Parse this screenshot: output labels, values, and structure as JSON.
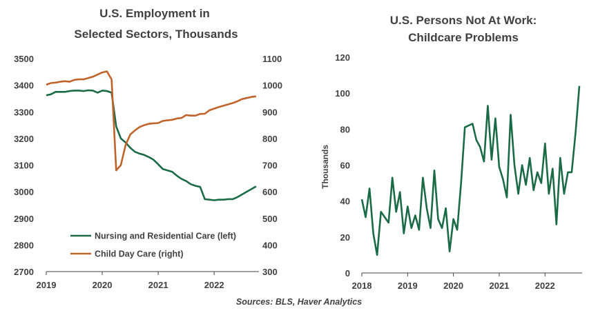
{
  "source": "Sources: BLS, Haver Analytics",
  "colors": {
    "nursing": "#1a6b45",
    "childcare": "#c0632b",
    "persons": "#1a6b45",
    "axis": "#404040"
  },
  "chart_data": [
    {
      "type": "line",
      "title_lines": [
        "U.S. Employment in",
        "Selected Sectors, Thousands"
      ],
      "xlabel": "",
      "x_ticks": [
        "2019",
        "2020",
        "2021",
        "2022"
      ],
      "y_left_ticks": [
        "3500",
        "3400",
        "3300",
        "3200",
        "3100",
        "3000",
        "2900",
        "2800",
        "2700"
      ],
      "y_right_ticks": [
        "1100",
        "1000",
        "900",
        "800",
        "700",
        "600",
        "500",
        "400",
        "300"
      ],
      "ylim_left": [
        2700,
        3500
      ],
      "ylim_right": [
        300,
        1100
      ],
      "xlim": [
        2019.0,
        2022.8
      ],
      "grid": false,
      "legend": "bottom-left",
      "series": [
        {
          "name": "Nursing and Residential Care (left)",
          "axis": "left",
          "x": [
            2019.0,
            2019.083,
            2019.167,
            2019.25,
            2019.333,
            2019.417,
            2019.5,
            2019.583,
            2019.667,
            2019.75,
            2019.833,
            2019.917,
            2020.0,
            2020.083,
            2020.167,
            2020.25,
            2020.333,
            2020.417,
            2020.5,
            2020.583,
            2020.667,
            2020.75,
            2020.833,
            2020.917,
            2021.0,
            2021.083,
            2021.167,
            2021.25,
            2021.333,
            2021.417,
            2021.5,
            2021.583,
            2021.667,
            2021.75,
            2021.833,
            2021.917,
            2022.0,
            2022.083,
            2022.167,
            2022.25,
            2022.333,
            2022.417,
            2022.5,
            2022.583,
            2022.667,
            2022.75
          ],
          "values": [
            3362,
            3366,
            3375,
            3375,
            3375,
            3378,
            3380,
            3380,
            3378,
            3381,
            3380,
            3372,
            3380,
            3378,
            3372,
            3245,
            3200,
            3185,
            3165,
            3150,
            3143,
            3138,
            3130,
            3120,
            3103,
            3085,
            3080,
            3075,
            3060,
            3048,
            3040,
            3028,
            3022,
            3018,
            2972,
            2970,
            2968,
            2970,
            2970,
            2972,
            2972,
            2980,
            2990,
            3000,
            3010,
            3020
          ]
        },
        {
          "name": "Child Day Care (right)",
          "axis": "right",
          "x": [
            2019.0,
            2019.083,
            2019.167,
            2019.25,
            2019.333,
            2019.417,
            2019.5,
            2019.583,
            2019.667,
            2019.75,
            2019.833,
            2019.917,
            2020.0,
            2020.083,
            2020.167,
            2020.25,
            2020.333,
            2020.417,
            2020.5,
            2020.583,
            2020.667,
            2020.75,
            2020.833,
            2020.917,
            2021.0,
            2021.083,
            2021.167,
            2021.25,
            2021.333,
            2021.417,
            2021.5,
            2021.583,
            2021.667,
            2021.75,
            2021.833,
            2021.917,
            2022.0,
            2022.083,
            2022.167,
            2022.25,
            2022.333,
            2022.417,
            2022.5,
            2022.583,
            2022.667,
            2022.75
          ],
          "values": [
            1002,
            1008,
            1010,
            1013,
            1015,
            1013,
            1020,
            1022,
            1022,
            1027,
            1032,
            1040,
            1048,
            1052,
            1022,
            680,
            700,
            775,
            815,
            830,
            843,
            850,
            855,
            857,
            858,
            866,
            868,
            870,
            875,
            877,
            888,
            886,
            886,
            892,
            893,
            906,
            912,
            918,
            923,
            928,
            933,
            940,
            948,
            952,
            956,
            958
          ]
        }
      ]
    },
    {
      "type": "line",
      "title_lines": [
        "U.S. Persons Not At Work:",
        "Childcare Problems"
      ],
      "xlabel": "",
      "ylabel": "Thousands",
      "x_ticks": [
        "2018",
        "2019",
        "2020",
        "2021",
        "2022"
      ],
      "y_ticks": [
        "120",
        "100",
        "80",
        "60",
        "40",
        "20",
        "0"
      ],
      "ylim": [
        0,
        120
      ],
      "xlim": [
        2018.0,
        2022.75
      ],
      "grid": false,
      "series": [
        {
          "name": "",
          "x": [
            2018.0,
            2018.083,
            2018.167,
            2018.25,
            2018.333,
            2018.417,
            2018.5,
            2018.583,
            2018.667,
            2018.75,
            2018.833,
            2018.917,
            2019.0,
            2019.083,
            2019.167,
            2019.25,
            2019.333,
            2019.417,
            2019.5,
            2019.583,
            2019.667,
            2019.75,
            2019.833,
            2019.917,
            2020.0,
            2020.083,
            2020.167,
            2020.25,
            2020.333,
            2020.417,
            2020.5,
            2020.583,
            2020.667,
            2020.75,
            2020.833,
            2020.917,
            2021.0,
            2021.083,
            2021.167,
            2021.25,
            2021.333,
            2021.417,
            2021.5,
            2021.583,
            2021.667,
            2021.75,
            2021.833,
            2021.917,
            2022.0,
            2022.083,
            2022.167,
            2022.25,
            2022.333,
            2022.417,
            2022.5,
            2022.583,
            2022.667,
            2022.75
          ],
          "values": [
            41,
            31,
            47,
            22,
            10,
            34,
            31,
            28,
            53,
            34,
            45,
            22,
            37,
            25,
            32,
            24,
            53,
            36,
            25,
            57,
            30,
            25,
            36,
            12,
            30,
            24,
            50,
            81,
            82,
            83,
            74,
            70,
            62,
            93,
            63,
            86,
            59,
            52,
            42,
            88,
            60,
            44,
            60,
            49,
            64,
            46,
            56,
            50,
            72,
            44,
            58,
            27,
            64,
            44,
            56,
            56,
            78,
            104
          ]
        }
      ]
    }
  ]
}
